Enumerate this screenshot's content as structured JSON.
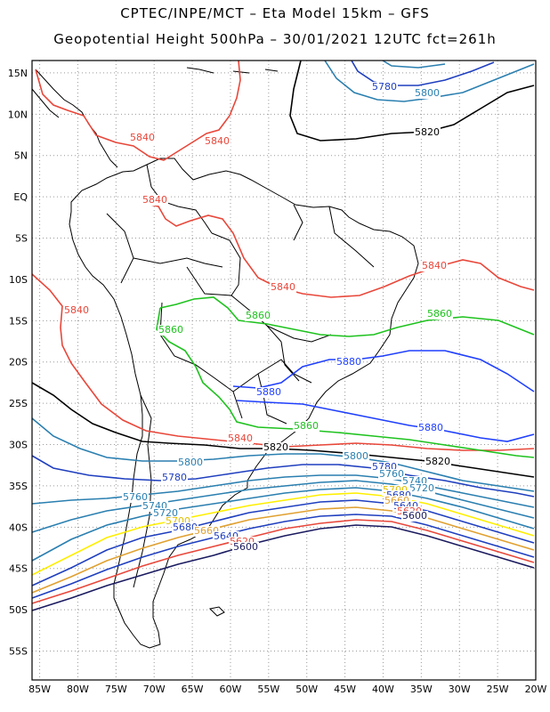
{
  "title_line1": "CPTEC/INPE/MCT –   Eta Model 15km – GFS",
  "title_line2": "Geopotential Height 500hPa – 30/01/2021 12UTC fct=261h",
  "lat_labels": [
    "15N",
    "10N",
    "5N",
    "EQ",
    "5S",
    "10S",
    "15S",
    "20S",
    "25S",
    "30S",
    "35S",
    "40S",
    "45S",
    "50S",
    "55S"
  ],
  "lon_labels": [
    "85W",
    "80W",
    "75W",
    "70W",
    "65W",
    "60W",
    "55W",
    "50W",
    "45W",
    "40W",
    "35W",
    "30W",
    "25W",
    "20W"
  ],
  "contour_labels": [
    {
      "id": "l-5820-n",
      "text": "5820",
      "color": "#000000"
    },
    {
      "id": "l-5800-n",
      "text": "5800",
      "color": "#2a7fb0"
    },
    {
      "id": "l-5780-n",
      "text": "5780",
      "color": "#1f3fbf"
    },
    {
      "id": "l-5840-a",
      "text": "5840",
      "color": "#e8473a"
    },
    {
      "id": "l-5840-b",
      "text": "5840",
      "color": "#e8473a"
    },
    {
      "id": "l-5840-c",
      "text": "5840",
      "color": "#e8473a"
    },
    {
      "id": "l-5840-d",
      "text": "5840",
      "color": "#e8473a"
    },
    {
      "id": "l-5840-e",
      "text": "5840",
      "color": "#e8473a"
    },
    {
      "id": "l-5840-f",
      "text": "5840",
      "color": "#e8473a"
    },
    {
      "id": "l-5840-g",
      "text": "5840",
      "color": "#e8473a"
    },
    {
      "id": "l-5860-a",
      "text": "5860",
      "color": "#1ec21e"
    },
    {
      "id": "l-5860-b",
      "text": "5860",
      "color": "#1ec21e"
    },
    {
      "id": "l-5860-c",
      "text": "5860",
      "color": "#1ec21e"
    },
    {
      "id": "l-5860-d",
      "text": "5860",
      "color": "#1ec21e"
    },
    {
      "id": "l-5880-a",
      "text": "5880",
      "color": "#1f3fff"
    },
    {
      "id": "l-5880-b",
      "text": "5880",
      "color": "#1f3fff"
    },
    {
      "id": "l-5880-c",
      "text": "5880",
      "color": "#1f3fff"
    },
    {
      "id": "l-5820-s",
      "text": "5820",
      "color": "#000000"
    },
    {
      "id": "l-5820-e",
      "text": "5820",
      "color": "#000000"
    },
    {
      "id": "l-5800-s",
      "text": "5800",
      "color": "#2a7fb0"
    },
    {
      "id": "l-5800-e",
      "text": "5800",
      "color": "#2a7fb0"
    },
    {
      "id": "l-5780-s",
      "text": "5780",
      "color": "#1f3fbf"
    },
    {
      "id": "l-5780-e",
      "text": "5780",
      "color": "#1f3fbf"
    },
    {
      "id": "l-5760-s",
      "text": "5760",
      "color": "#2a7fb0"
    },
    {
      "id": "l-5740-s",
      "text": "5740",
      "color": "#2a7fb0"
    },
    {
      "id": "l-5720-s",
      "text": "5720",
      "color": "#2a7fb0"
    },
    {
      "id": "l-5700-s",
      "text": "5700",
      "color": "#e0c000"
    },
    {
      "id": "l-5680-s",
      "text": "5680",
      "color": "#1f3fbf"
    },
    {
      "id": "l-5660-s",
      "text": "5660",
      "color": "#e0a030"
    },
    {
      "id": "l-5640-s",
      "text": "5640",
      "color": "#1f3fbf"
    },
    {
      "id": "l-5620-s",
      "text": "5620",
      "color": "#e8473a"
    },
    {
      "id": "l-5600-s",
      "text": "5600",
      "color": "#1a1a60"
    },
    {
      "id": "l-5760-e",
      "text": "5760",
      "color": "#2a7fb0"
    },
    {
      "id": "l-5740-e",
      "text": "5740",
      "color": "#2a7fb0"
    },
    {
      "id": "l-5720-e",
      "text": "5720",
      "color": "#2a7fb0"
    },
    {
      "id": "l-5700-e",
      "text": "5700",
      "color": "#e0c000"
    },
    {
      "id": "l-5680-e",
      "text": "5680",
      "color": "#1f3fbf"
    },
    {
      "id": "l-5660-e",
      "text": "5660",
      "color": "#e0a030"
    },
    {
      "id": "l-5640-e",
      "text": "5640",
      "color": "#1f3fbf"
    },
    {
      "id": "l-5620-e",
      "text": "5620",
      "color": "#e8473a"
    },
    {
      "id": "l-5600-e",
      "text": "5600",
      "color": "#1a1a60"
    }
  ],
  "colors": {
    "c5880": "#1f3fff",
    "c5860": "#1ec21e",
    "c5840": "#e8473a",
    "c5820": "#000000",
    "c5800": "#2a7fb0",
    "c5780": "#1f3fbf",
    "c5700": "#ffef00",
    "c5660": "#e0a030",
    "c5600": "#1a1a60",
    "grid": "#9a9a9a",
    "coast": "#000000"
  }
}
